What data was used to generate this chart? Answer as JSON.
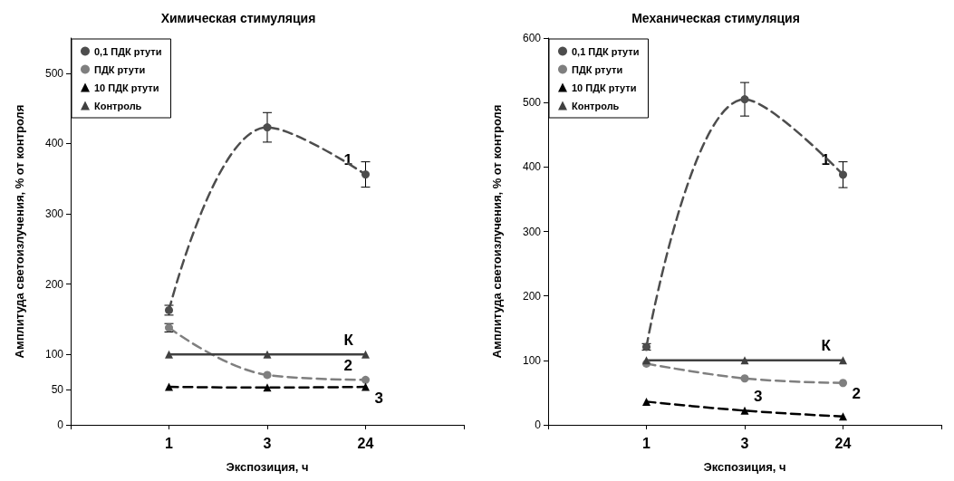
{
  "chart_data": [
    {
      "type": "line",
      "title": "Химическая стимуляция",
      "xlabel": "Экспозиция, ч",
      "ylabel": "Амплитуда светоизлучения, % от контроля",
      "categories": [
        null,
        "1",
        "3",
        "24",
        null
      ],
      "ylim": [
        0,
        550
      ],
      "yticks": [
        0,
        50,
        100,
        200,
        300,
        400,
        500
      ],
      "grid": false,
      "legend": "top left",
      "series": [
        {
          "name": "0,1 ПДК ртути",
          "color": "#4d4d4d",
          "marker": "circle",
          "line_style": "dashed",
          "values": [
            null,
            163,
            423,
            356,
            null
          ],
          "errors": [
            null,
            7,
            21,
            18,
            null
          ]
        },
        {
          "name": "ПДК ртути",
          "color": "#7f7f7f",
          "marker": "circle",
          "line_style": "dashed",
          "values": [
            null,
            138,
            71,
            64,
            null
          ],
          "errors": [
            null,
            6,
            null,
            null,
            null
          ]
        },
        {
          "name": "10 ПДК ртути",
          "color": "#000000",
          "marker": "triangle",
          "line_style": "dashed",
          "values": [
            null,
            54,
            53,
            54,
            null
          ]
        },
        {
          "name": "Контроль",
          "color": "#404040",
          "marker": "triangle",
          "line_style": "solid",
          "values": [
            null,
            100,
            100,
            100,
            null
          ]
        }
      ],
      "annotations": [
        {
          "text": "1",
          "x": "24",
          "y": 356
        },
        {
          "text": "К",
          "x": "24",
          "y": 100
        },
        {
          "text": "2",
          "x": "24",
          "y": 64
        },
        {
          "text": "3",
          "x": "24",
          "y": 54
        }
      ]
    },
    {
      "type": "line",
      "title": "Механическая стимуляция",
      "xlabel": "Экспозиция, ч",
      "ylabel": "Амплитуда светоизлучения, % от контроля",
      "categories": [
        null,
        "1",
        "3",
        "24",
        null
      ],
      "ylim": [
        0,
        600
      ],
      "yticks": [
        0,
        100,
        200,
        300,
        400,
        500,
        600
      ],
      "grid": false,
      "legend": "top left",
      "series": [
        {
          "name": "0,1 ПДК ртути",
          "color": "#4d4d4d",
          "marker": "circle",
          "line_style": "dashed",
          "values": [
            null,
            121,
            505,
            388,
            null
          ],
          "errors": [
            null,
            5,
            26,
            20,
            null
          ]
        },
        {
          "name": "ПДК ртути",
          "color": "#7f7f7f",
          "marker": "circle",
          "line_style": "dashed",
          "values": [
            null,
            95,
            72,
            65,
            null
          ]
        },
        {
          "name": "10 ПДК ртути",
          "color": "#000000",
          "marker": "triangle",
          "line_style": "dashed",
          "values": [
            null,
            36,
            22,
            13,
            null
          ]
        },
        {
          "name": "Контроль",
          "color": "#404040",
          "marker": "triangle",
          "line_style": "solid",
          "values": [
            null,
            100,
            100,
            100,
            null
          ]
        }
      ],
      "annotations": [
        {
          "text": "1",
          "x": "24",
          "y": 388
        },
        {
          "text": "К",
          "x": "24",
          "y": 100
        },
        {
          "text": "2",
          "x": "24",
          "y": 65
        },
        {
          "text": "3",
          "x": "3",
          "y": 22
        }
      ]
    }
  ]
}
